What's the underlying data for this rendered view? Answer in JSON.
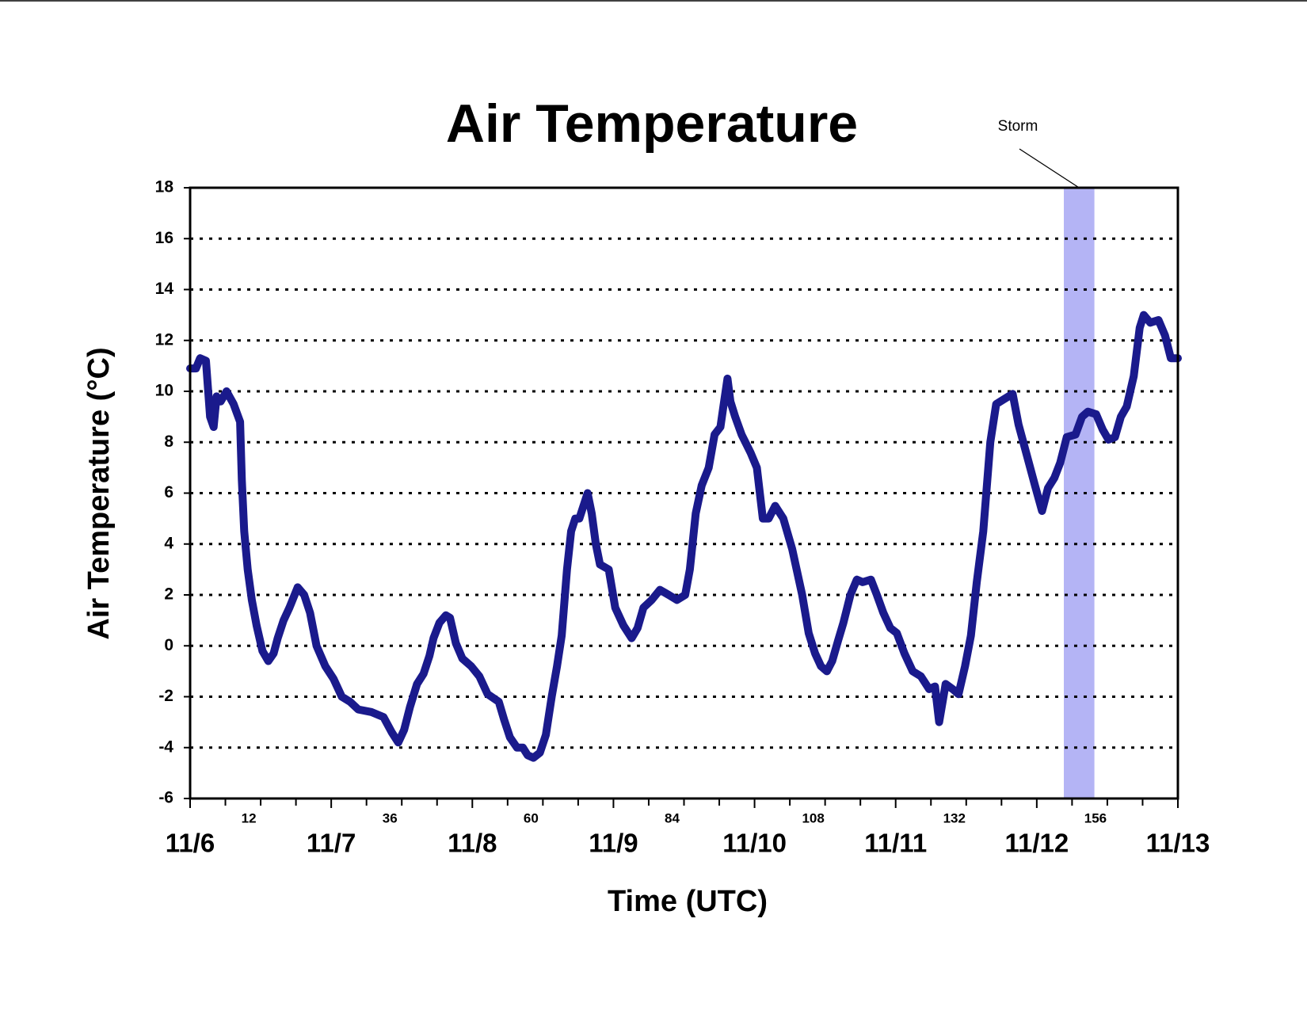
{
  "chart_data": {
    "type": "line",
    "title": "Air Temperature",
    "x_label": "Time (UTC)",
    "y_label": "Air Temperature (°C)",
    "xlim": [
      0,
      168
    ],
    "xticks": [
      {
        "value": 0,
        "label": "11/6"
      },
      12,
      {
        "value": 24,
        "label": "11/7"
      },
      36,
      {
        "value": 48,
        "label": "11/8"
      },
      60,
      {
        "value": 72,
        "label": "11/9"
      },
      84,
      {
        "value": 96,
        "label": "11/10"
      },
      108,
      {
        "value": 120,
        "label": "11/11"
      },
      132,
      {
        "value": 144,
        "label": "11/12"
      },
      156,
      {
        "value": 168,
        "label": "11/13"
      }
    ],
    "xminor_ticks": [
      6,
      18,
      30,
      42,
      54,
      66,
      78,
      90,
      102,
      114,
      126,
      138,
      150,
      162
    ],
    "ylim": [
      -6,
      18
    ],
    "yticks": [
      -6,
      -4,
      -2,
      0,
      2,
      4,
      6,
      8,
      10,
      12,
      14,
      16,
      18
    ],
    "grid": true,
    "annotation": {
      "text": "Storm",
      "x_range": [
        148.6,
        153.8
      ],
      "color": "#b4b4f5"
    },
    "series": [
      {
        "color": "#1a1a8c",
        "x": [
          0,
          1.0,
          1.7,
          2.7,
          3.4,
          4.0,
          4.5,
          5.2,
          6.2,
          7.4,
          8.5,
          8.8,
          9.2,
          9.8,
          10.5,
          11.3,
          12.3,
          13.3,
          14.2,
          14.9,
          15.9,
          16.9,
          18.3,
          19.4,
          20.4,
          21.5,
          23.0,
          24.4,
          25.8,
          27.2,
          28.6,
          30.8,
          32.9,
          34.3,
          35.4,
          36.4,
          37.4,
          38.6,
          39.7,
          40.7,
          41.4,
          42.4,
          43.5,
          44.2,
          45.2,
          46.3,
          47.8,
          49.2,
          50.6,
          52.5,
          53.4,
          54.4,
          55.6,
          56.6,
          57.4,
          58.4,
          59.5,
          60.5,
          61.5,
          62.4,
          63.2,
          64.1,
          64.8,
          65.5,
          66.2,
          66.9,
          67.6,
          68.3,
          69.0,
          69.7,
          71.2,
          72.3,
          73.7,
          75.1,
          76.1,
          77.1,
          78.5,
          79.9,
          81.4,
          82.8,
          84.2,
          85.0,
          86.0,
          87.0,
          88.2,
          89.2,
          90.2,
          90.7,
          91.4,
          91.9,
          92.7,
          93.8,
          95.3,
          96.4,
          97.4,
          98.4,
          99.5,
          100.9,
          102.4,
          104.1,
          105.2,
          106.3,
          107.3,
          108.3,
          109.2,
          110.2,
          111.1,
          112.3,
          113.4,
          114.4,
          115.8,
          116.8,
          117.9,
          119.1,
          120.2,
          121.5,
          122.9,
          124.3,
          125.7,
          126.7,
          127.4,
          128.5,
          129.7,
          130.7,
          131.8,
          132.8,
          133.8,
          134.9,
          136.1,
          137.1,
          138.5,
          139.9,
          140.9,
          142.3,
          143.7,
          144.9,
          145.9,
          147.0,
          148.0,
          149.1,
          150.6,
          151.7,
          152.7,
          154.1,
          155.2,
          156.2,
          157.3,
          158.3,
          159.3,
          160.5,
          161.5,
          162.2,
          163.3,
          164.7,
          165.8,
          166.8,
          168
        ],
        "values": [
          10.9,
          10.9,
          11.3,
          11.2,
          9,
          8.6,
          9.8,
          9.6,
          10,
          9.5,
          8.8,
          6.5,
          4.5,
          3,
          1.8,
          0.8,
          -0.2,
          -0.6,
          -0.3,
          0.3,
          1,
          1.5,
          2.3,
          2,
          1.3,
          0,
          -0.8,
          -1.3,
          -2,
          -2.2,
          -2.5,
          -2.6,
          -2.8,
          -3.4,
          -3.8,
          -3.3,
          -2.4,
          -1.5,
          -1.1,
          -0.4,
          0.3,
          0.9,
          1.2,
          1.1,
          0.1,
          -0.5,
          -0.8,
          -1.2,
          -1.9,
          -2.2,
          -2.9,
          -3.6,
          -4,
          -4,
          -4.3,
          -4.4,
          -4.2,
          -3.5,
          -2,
          -0.8,
          0.4,
          3,
          4.5,
          5,
          5,
          5.5,
          6,
          5.2,
          4,
          3.2,
          3,
          1.5,
          0.8,
          0.3,
          0.7,
          1.5,
          1.8,
          2.2,
          2,
          1.8,
          2,
          3,
          5.2,
          6.3,
          7,
          8.3,
          8.6,
          9.4,
          10.5,
          9.6,
          9,
          8.3,
          7.6,
          7,
          5,
          5,
          5.5,
          5,
          3.8,
          2,
          0.5,
          -0.3,
          -0.8,
          -1,
          -0.6,
          0.2,
          0.9,
          2,
          2.6,
          2.5,
          2.6,
          2,
          1.3,
          0.7,
          0.5,
          -0.3,
          -1,
          -1.2,
          -1.7,
          -1.6,
          -3,
          -1.5,
          -1.7,
          -1.9,
          -0.8,
          0.4,
          2.5,
          4.5,
          8,
          9.5,
          9.7,
          9.9,
          8.7,
          7.5,
          6.3,
          5.3,
          6.2,
          6.6,
          7.2,
          8.2,
          8.3,
          9,
          9.2,
          9.1,
          8.5,
          8.1,
          8.2,
          9,
          9.4,
          10.6,
          12.5,
          13,
          12.7,
          12.8,
          12.2,
          11.3,
          11.3
        ]
      }
    ]
  }
}
